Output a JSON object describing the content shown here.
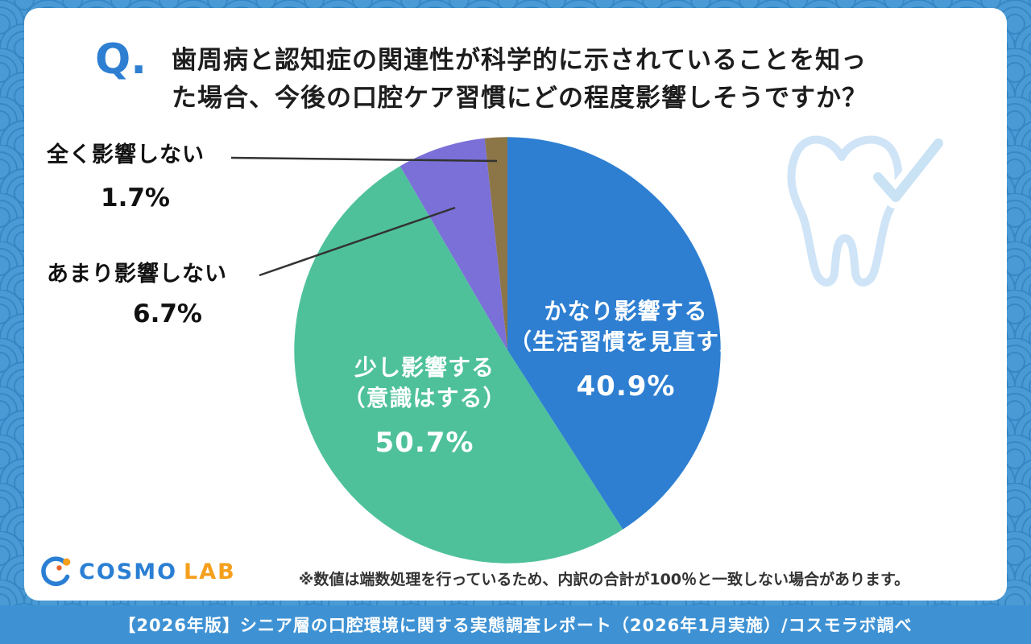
{
  "question": {
    "mark": "Q.",
    "line1": "歯周病と認知症の関連性が科学的に示されていることを知っ",
    "line2": "た場合、今後の口腔ケア習慣にどの程度影響しそうですか？"
  },
  "chart_data": {
    "type": "pie",
    "title": "歯周病と認知症の関連性が科学的に示されていることを知った場合、今後の口腔ケア習慣にどの程度影響しそうですか？",
    "unit": "%",
    "start_angle": "top",
    "direction": "clockwise",
    "slices": [
      {
        "label": "かなり影響する（生活習慣を見直す）",
        "value": 40.9,
        "color": "#2e7fd2"
      },
      {
        "label": "少し影響する（意識はする）",
        "value": 50.7,
        "color": "#4ec19b"
      },
      {
        "label": "あまり影響しない",
        "value": 6.7,
        "color": "#7a70d8"
      },
      {
        "label": "全く影響しない",
        "value": 1.7,
        "color": "#8c7546"
      }
    ],
    "legend": "none"
  },
  "callouts": {
    "much": {
      "line1": "かなり影響する",
      "line2": "（生活習慣を見直す）",
      "pct": "40.9%"
    },
    "some": {
      "line1": "少し影響する",
      "line2": "（意識はする）",
      "pct": "50.7%"
    },
    "little": {
      "label": "あまり影響しない",
      "pct": "6.7%"
    },
    "none": {
      "label": "全く影響しない",
      "pct": "1.7%"
    }
  },
  "footnote": "※数値は端数処理を行っているため、内訳の合計が100％と一致しない場合があります。",
  "footer_bar": {
    "text": "【2026年版】シニア層の口腔環境に関する実態調査レポート（2026年1月実施）/コスモラボ調べ"
  },
  "logo": {
    "name": "COSMO",
    "suffix": "LAB"
  },
  "colors": {
    "background": "#4a9bd5",
    "wave_line": "#3688c4",
    "footer_bar": "#3e92d4",
    "accent_blue": "#2e7fd2",
    "logo_orange": "#f5a01d"
  }
}
